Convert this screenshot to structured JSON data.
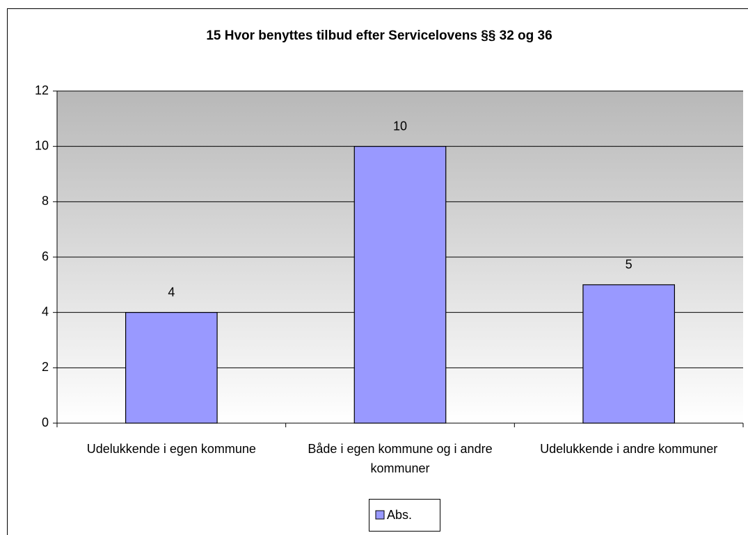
{
  "chart_data": {
    "type": "bar",
    "title": "15 Hvor benyttes tilbud efter Servicelovens §§ 32 og 36",
    "categories": [
      "Udelukkende i egen kommune",
      "Både i egen kommune og i andre kommuner",
      "Udelukkende i andre kommuner"
    ],
    "series": [
      {
        "name": "Abs.",
        "color": "#9999ff",
        "values": [
          4,
          10,
          5
        ]
      }
    ],
    "ylim": [
      0,
      12
    ],
    "yticks": [
      0,
      2,
      4,
      6,
      8,
      10,
      12
    ],
    "grid": true,
    "legend": "bottom"
  }
}
